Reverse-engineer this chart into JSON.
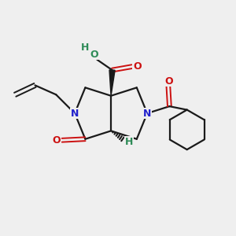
{
  "background_color": "#efefef",
  "bond_color": "#1a1a1a",
  "N_color": "#2020cc",
  "O_color": "#cc1111",
  "OH_color": "#2e8b57",
  "H_color": "#2e8b57",
  "figsize": [
    3.0,
    3.0
  ],
  "dpi": 100,
  "xlim": [
    0,
    10
  ],
  "ylim": [
    0,
    10
  ]
}
